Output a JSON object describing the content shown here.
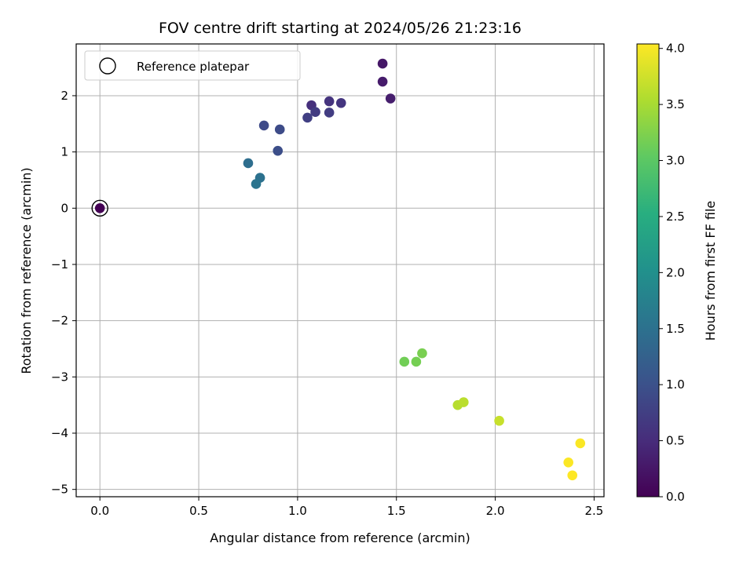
{
  "chart_data": {
    "type": "scatter",
    "title": "FOV centre drift starting at 2024/05/26 21:23:16",
    "xlabel": "Angular distance from reference (arcmin)",
    "ylabel": "Rotation from reference (arcmin)",
    "xlim": [
      -0.12,
      2.55
    ],
    "ylim": [
      -5.13,
      2.92
    ],
    "xticks": [
      0.0,
      0.5,
      1.0,
      1.5,
      2.0,
      2.5
    ],
    "xtick_labels": [
      "0.0",
      "0.5",
      "1.0",
      "1.5",
      "2.0",
      "2.5"
    ],
    "yticks": [
      -5,
      -4,
      -3,
      -2,
      -1,
      0,
      1,
      2
    ],
    "ytick_labels": [
      "−5",
      "−4",
      "−3",
      "−2",
      "−1",
      "0",
      "1",
      "2"
    ],
    "grid": true,
    "legend": {
      "placement": "upper-left",
      "entries": [
        {
          "label": "Reference platepar",
          "marker": "open-circle",
          "x": 0.0,
          "y": 0.0
        }
      ]
    },
    "colorbar": {
      "label": "Hours from first FF file",
      "colormap": "viridis",
      "range": [
        0.0,
        4.04
      ],
      "ticks": [
        0.0,
        0.5,
        1.0,
        1.5,
        2.0,
        2.5,
        3.0,
        3.5,
        4.0
      ],
      "tick_labels": [
        "0.0",
        "0.5",
        "1.0",
        "1.5",
        "2.0",
        "2.5",
        "3.0",
        "3.5",
        "4.0"
      ]
    },
    "points": [
      {
        "x": 0.0,
        "y": 0.0,
        "hours": 0.0
      },
      {
        "x": 1.43,
        "y": 2.57,
        "hours": 0.25
      },
      {
        "x": 1.43,
        "y": 2.25,
        "hours": 0.3
      },
      {
        "x": 1.47,
        "y": 1.95,
        "hours": 0.33
      },
      {
        "x": 1.07,
        "y": 1.83,
        "hours": 0.55
      },
      {
        "x": 1.16,
        "y": 1.9,
        "hours": 0.6
      },
      {
        "x": 1.22,
        "y": 1.87,
        "hours": 0.62
      },
      {
        "x": 1.09,
        "y": 1.71,
        "hours": 0.7
      },
      {
        "x": 1.16,
        "y": 1.7,
        "hours": 0.72
      },
      {
        "x": 1.05,
        "y": 1.61,
        "hours": 0.75
      },
      {
        "x": 0.83,
        "y": 1.47,
        "hours": 0.9
      },
      {
        "x": 0.91,
        "y": 1.4,
        "hours": 0.92
      },
      {
        "x": 0.9,
        "y": 1.02,
        "hours": 0.95
      },
      {
        "x": 0.75,
        "y": 0.8,
        "hours": 1.45
      },
      {
        "x": 0.81,
        "y": 0.54,
        "hours": 1.5
      },
      {
        "x": 0.79,
        "y": 0.43,
        "hours": 1.55
      },
      {
        "x": 1.54,
        "y": -2.73,
        "hours": 3.15
      },
      {
        "x": 1.6,
        "y": -2.73,
        "hours": 3.18
      },
      {
        "x": 1.63,
        "y": -2.58,
        "hours": 3.2
      },
      {
        "x": 1.81,
        "y": -3.5,
        "hours": 3.6
      },
      {
        "x": 1.84,
        "y": -3.45,
        "hours": 3.62
      },
      {
        "x": 2.02,
        "y": -3.78,
        "hours": 3.7
      },
      {
        "x": 2.43,
        "y": -4.18,
        "hours": 4.02
      },
      {
        "x": 2.37,
        "y": -4.52,
        "hours": 4.03
      },
      {
        "x": 2.39,
        "y": -4.75,
        "hours": 4.04
      }
    ]
  }
}
